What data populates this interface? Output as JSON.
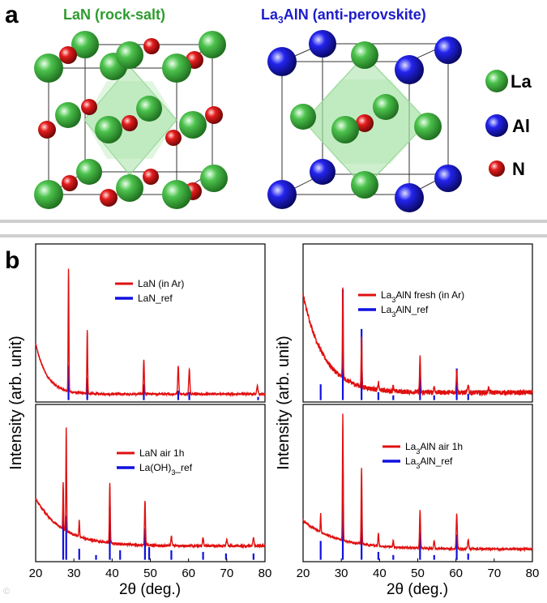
{
  "panel_a": {
    "letter": "a",
    "left_title": "LaN (rock-salt)",
    "right_title_pre": "La",
    "right_title_sub": "3",
    "right_title_post": "AlN (anti-perovskite)",
    "legend": [
      {
        "symbol": "La",
        "color": "#3fae3f"
      },
      {
        "symbol": "Al",
        "color": "#1c1ce6"
      },
      {
        "symbol": "N",
        "color": "#e01c1c"
      }
    ],
    "colors": {
      "La": "#3fae3f",
      "Al": "#1c1ce6",
      "N": "#e01c1c",
      "octahedron": "#9be09b"
    }
  },
  "panel_b": {
    "letter": "b",
    "ylabel": "Intensity (arb. unit)",
    "xlabel_theta": "2θ (deg.)",
    "xticks": [
      "20",
      "30",
      "40",
      "50",
      "60",
      "70",
      "80"
    ]
  },
  "chart_data": [
    {
      "type": "line",
      "id": "LaN_Ar",
      "xlim": [
        20,
        80
      ],
      "legend": [
        {
          "name": "LaN (in Ar)",
          "color": "#e01010",
          "sub": "",
          "post": ""
        },
        {
          "name": "LaN_ref",
          "color": "#1010e0",
          "sub": "",
          "post": ""
        }
      ],
      "background": {
        "base": 0.05,
        "amp": 0.32,
        "decay": 3.0,
        "noise": 0.012
      },
      "peaks": [
        [
          28.6,
          0.78
        ],
        [
          33.5,
          0.4
        ],
        [
          48.3,
          0.22
        ],
        [
          57.3,
          0.18
        ],
        [
          60.2,
          0.16
        ],
        [
          78.0,
          0.05
        ]
      ],
      "ref": [
        [
          28.6,
          0.22
        ],
        [
          33.5,
          0.14
        ],
        [
          48.3,
          0.1
        ],
        [
          57.3,
          0.06
        ],
        [
          60.2,
          0.05
        ],
        [
          78.2,
          0.02
        ]
      ]
    },
    {
      "type": "line",
      "id": "La3AlN_fresh",
      "xlim": [
        20,
        80
      ],
      "legend": [
        {
          "name": "La",
          "sub": "3",
          "post": "AlN fresh (in Ar)",
          "color": "#e01010"
        },
        {
          "name": "La",
          "sub": "3",
          "post": "AlN_ref",
          "color": "#1010e0"
        }
      ],
      "background": {
        "base": 0.06,
        "amp": 0.62,
        "decay": 5.5,
        "noise": 0.03
      },
      "peaks": [
        [
          30.4,
          0.58
        ],
        [
          35.3,
          0.32
        ],
        [
          39.7,
          0.05
        ],
        [
          43.6,
          0.04
        ],
        [
          50.6,
          0.22
        ],
        [
          54.3,
          0.04
        ],
        [
          60.2,
          0.14
        ],
        [
          63.2,
          0.05
        ],
        [
          68.5,
          0.03
        ]
      ],
      "ref": [
        [
          24.6,
          0.1
        ],
        [
          30.4,
          0.7
        ],
        [
          35.3,
          0.45
        ],
        [
          39.7,
          0.05
        ],
        [
          43.6,
          0.03
        ],
        [
          50.6,
          0.22
        ],
        [
          54.3,
          0.03
        ],
        [
          60.2,
          0.2
        ],
        [
          63.2,
          0.04
        ]
      ]
    },
    {
      "type": "line",
      "id": "LaN_air",
      "xlim": [
        20,
        80
      ],
      "legend": [
        {
          "name": "LaN air 1h",
          "color": "#e01010",
          "sub": "",
          "post": ""
        },
        {
          "name": "La(OH)",
          "sub": "3",
          "post": "_ref",
          "color": "#1010e0"
        }
      ],
      "background": {
        "base": 0.1,
        "amp": 0.3,
        "decay": 7.0,
        "noise": 0.015
      },
      "peaks": [
        [
          27.2,
          0.3
        ],
        [
          28.0,
          0.65
        ],
        [
          31.4,
          0.1
        ],
        [
          39.4,
          0.38
        ],
        [
          48.6,
          0.28
        ],
        [
          55.5,
          0.06
        ],
        [
          63.8,
          0.05
        ],
        [
          70.0,
          0.04
        ],
        [
          77.0,
          0.05
        ]
      ],
      "ref": [
        [
          27.2,
          0.3
        ],
        [
          28.0,
          0.28
        ],
        [
          31.4,
          0.07
        ],
        [
          35.8,
          0.03
        ],
        [
          39.4,
          0.34
        ],
        [
          42.1,
          0.06
        ],
        [
          48.6,
          0.2
        ],
        [
          49.7,
          0.08
        ],
        [
          55.5,
          0.06
        ],
        [
          63.8,
          0.05
        ],
        [
          69.8,
          0.04
        ],
        [
          77.0,
          0.04
        ]
      ]
    },
    {
      "type": "line",
      "id": "La3AlN_air",
      "xlim": [
        20,
        80
      ],
      "legend": [
        {
          "name": "La",
          "sub": "3",
          "post": "AlN air 1h",
          "color": "#e01010"
        },
        {
          "name": "La",
          "sub": "3",
          "post": "AlN_ref",
          "color": "#1010e0"
        }
      ],
      "background": {
        "base": 0.08,
        "amp": 0.18,
        "decay": 9.0,
        "noise": 0.012
      },
      "peaks": [
        [
          24.6,
          0.12
        ],
        [
          30.4,
          0.8
        ],
        [
          35.3,
          0.48
        ],
        [
          39.7,
          0.08
        ],
        [
          43.6,
          0.04
        ],
        [
          50.6,
          0.24
        ],
        [
          54.3,
          0.05
        ],
        [
          60.2,
          0.22
        ],
        [
          63.2,
          0.06
        ]
      ],
      "ref": [
        [
          24.6,
          0.12
        ],
        [
          30.4,
          0.55
        ],
        [
          35.3,
          0.36
        ],
        [
          39.7,
          0.05
        ],
        [
          43.6,
          0.03
        ],
        [
          50.6,
          0.18
        ],
        [
          54.3,
          0.03
        ],
        [
          60.2,
          0.16
        ],
        [
          63.2,
          0.04
        ]
      ]
    }
  ]
}
